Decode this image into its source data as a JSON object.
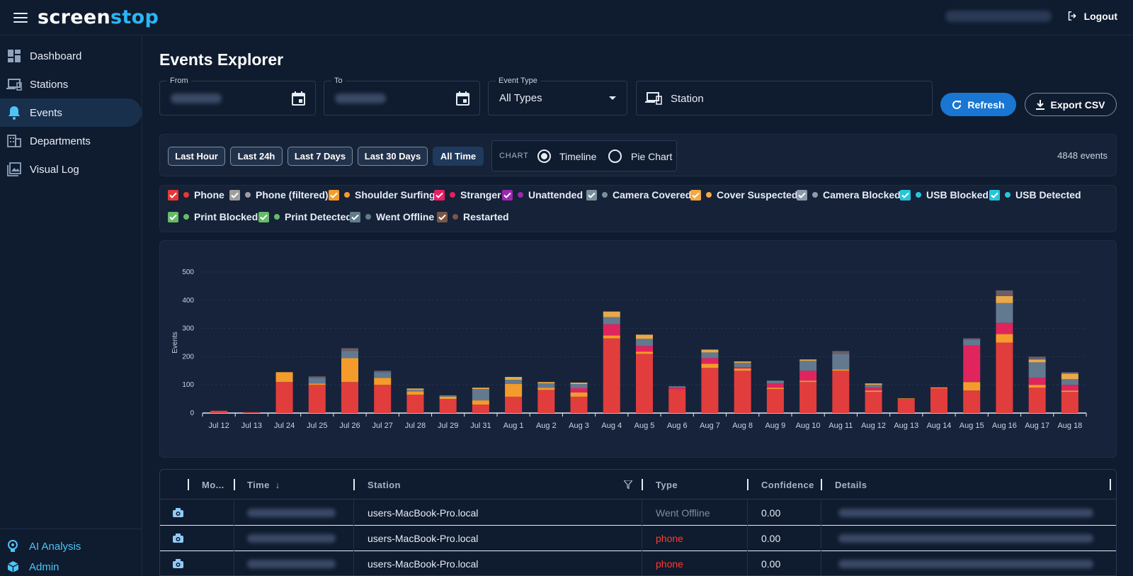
{
  "app": {
    "logo_main": "screen",
    "logo_accent": "stop",
    "logout_label": "Logout"
  },
  "sidebar": {
    "items": [
      {
        "label": "Dashboard",
        "icon": "dashboard-icon"
      },
      {
        "label": "Stations",
        "icon": "devices-icon"
      },
      {
        "label": "Events",
        "icon": "bell-icon"
      },
      {
        "label": "Departments",
        "icon": "building-icon"
      },
      {
        "label": "Visual Log",
        "icon": "photo-library-icon"
      }
    ],
    "bottom": [
      {
        "label": "AI Analysis",
        "icon": "ai-icon"
      },
      {
        "label": "Admin",
        "icon": "cube-icon"
      }
    ]
  },
  "page": {
    "title": "Events Explorer"
  },
  "filters": {
    "from_label": "From",
    "to_label": "To",
    "event_type_label": "Event Type",
    "event_type_value": "All Types",
    "station_placeholder": "Station",
    "refresh_label": "Refresh",
    "export_label": "Export CSV"
  },
  "ranges": [
    "Last Hour",
    "Last 24h",
    "Last 7 Days",
    "Last 30 Days",
    "All Time"
  ],
  "active_range": "All Time",
  "chart_toggle": {
    "label": "CHART",
    "options": [
      "Timeline",
      "Pie Chart"
    ],
    "selected": "Timeline"
  },
  "event_count": "4848 events",
  "legend": [
    {
      "label": "Phone",
      "color": "#e53935"
    },
    {
      "label": "Phone (filtered)",
      "color": "#9e9e9e"
    },
    {
      "label": "Shoulder Surfing",
      "color": "#f39c2b"
    },
    {
      "label": "Stranger",
      "color": "#e91e63"
    },
    {
      "label": "Unattended",
      "color": "#9c27b0"
    },
    {
      "label": "Camera Covered",
      "color": "#78909c"
    },
    {
      "label": "Cover Suspected",
      "color": "#f5a742"
    },
    {
      "label": "Camera Blocked",
      "color": "#8d99ae"
    },
    {
      "label": "USB Blocked",
      "color": "#26c6da"
    },
    {
      "label": "USB Detected",
      "color": "#26c6da"
    },
    {
      "label": "Print Blocked",
      "color": "#66bb6a"
    },
    {
      "label": "Print Detected",
      "color": "#66bb6a"
    },
    {
      "label": "Went Offline",
      "color": "#607d8b"
    },
    {
      "label": "Restarted",
      "color": "#795548"
    }
  ],
  "chart_data": {
    "type": "bar",
    "stacked": true,
    "ylabel": "Events",
    "ylim": [
      0,
      500
    ],
    "yticks": [
      "0",
      "100",
      "200",
      "300",
      "400",
      "500"
    ],
    "categories": [
      "Jul 12",
      "Jul 13",
      "Jul 24",
      "Jul 25",
      "Jul 26",
      "Jul 27",
      "Jul 28",
      "Jul 29",
      "Jul 31",
      "Aug 1",
      "Aug 2",
      "Aug 3",
      "Aug 4",
      "Aug 5",
      "Aug 6",
      "Aug 7",
      "Aug 8",
      "Aug 9",
      "Aug 10",
      "Aug 11",
      "Aug 12",
      "Aug 13",
      "Aug 14",
      "Aug 15",
      "Aug 16",
      "Aug 17",
      "Aug 18"
    ],
    "series": [
      {
        "name": "Phone",
        "color": "#e23d3d",
        "values": [
          8,
          3,
          110,
          100,
          110,
          100,
          65,
          50,
          30,
          58,
          82,
          58,
          265,
          210,
          85,
          160,
          150,
          85,
          110,
          150,
          75,
          50,
          88,
          80,
          250,
          90,
          75
        ]
      },
      {
        "name": "Shoulder Surfing",
        "color": "#f39c2b",
        "values": [
          0,
          0,
          35,
          5,
          85,
          25,
          12,
          8,
          15,
          45,
          8,
          15,
          10,
          8,
          0,
          15,
          8,
          5,
          5,
          5,
          5,
          2,
          3,
          30,
          30,
          10,
          5
        ]
      },
      {
        "name": "Stranger",
        "color": "#e0245e",
        "values": [
          0,
          0,
          0,
          0,
          0,
          0,
          0,
          0,
          0,
          0,
          0,
          15,
          40,
          20,
          5,
          20,
          5,
          15,
          35,
          0,
          10,
          0,
          0,
          130,
          40,
          25,
          20
        ]
      },
      {
        "name": "Camera Covered",
        "color": "#63798f",
        "values": [
          0,
          0,
          0,
          20,
          25,
          20,
          5,
          5,
          40,
          15,
          15,
          15,
          25,
          25,
          5,
          20,
          15,
          10,
          35,
          55,
          10,
          0,
          0,
          20,
          70,
          55,
          20
        ]
      },
      {
        "name": "Cover Suspected",
        "color": "#e8a94a",
        "values": [
          0,
          0,
          0,
          0,
          0,
          0,
          5,
          0,
          5,
          10,
          5,
          5,
          20,
          15,
          0,
          10,
          5,
          0,
          5,
          0,
          5,
          0,
          0,
          0,
          25,
          10,
          20
        ]
      },
      {
        "name": "Went Offline",
        "color": "#6b5d68",
        "values": [
          0,
          0,
          0,
          5,
          10,
          5,
          0,
          0,
          0,
          0,
          0,
          0,
          0,
          0,
          0,
          0,
          0,
          0,
          0,
          10,
          0,
          0,
          0,
          5,
          20,
          10,
          5
        ]
      }
    ]
  },
  "table": {
    "headers": [
      "Mo...",
      "Time",
      "Station",
      "Type",
      "Confidence",
      "Details"
    ],
    "rows": [
      {
        "station": "users-MacBook-Pro.local",
        "type": "Went Offline",
        "type_color": "#7e8da3",
        "confidence": "0.00"
      },
      {
        "station": "users-MacBook-Pro.local",
        "type": "phone",
        "type_color": "#ff3b30",
        "confidence": "0.00"
      },
      {
        "station": "users-MacBook-Pro.local",
        "type": "phone",
        "type_color": "#ff3b30",
        "confidence": "0.00"
      }
    ]
  }
}
